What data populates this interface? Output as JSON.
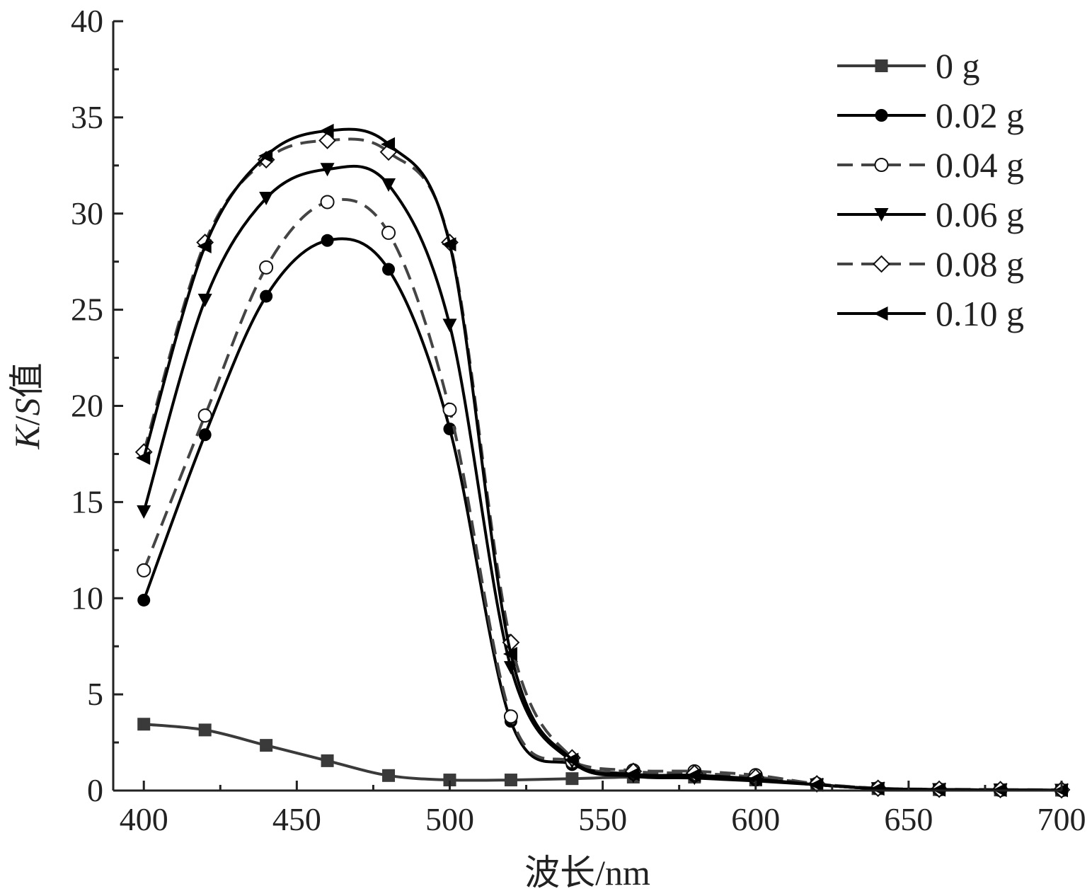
{
  "chart_data": {
    "type": "line",
    "xlabel": "波长/nm",
    "ylabel_parts": [
      {
        "text": "K",
        "italic": true
      },
      {
        "text": "/",
        "italic": false
      },
      {
        "text": "S",
        "italic": true
      },
      {
        "text": "值",
        "italic": false
      }
    ],
    "xlim": [
      390,
      700
    ],
    "ylim": [
      0,
      40
    ],
    "x_ticks": [
      400,
      450,
      500,
      550,
      600,
      650,
      700
    ],
    "y_ticks": [
      0,
      5,
      10,
      15,
      20,
      25,
      30,
      35,
      40
    ],
    "grid": false,
    "legend_position": "top-right",
    "x": [
      400,
      420,
      440,
      460,
      480,
      500,
      520,
      540,
      560,
      580,
      600,
      620,
      640,
      660,
      680,
      700
    ],
    "series": [
      {
        "name": "0 g",
        "marker": "square",
        "dash": false,
        "color": "#3a3a3a",
        "values": [
          3.45,
          3.15,
          2.35,
          1.55,
          0.78,
          0.55,
          0.55,
          0.62,
          0.7,
          0.7,
          0.55,
          0.3,
          0.1,
          0.05,
          0.03,
          0.02
        ]
      },
      {
        "name": "0.02 g",
        "marker": "circle",
        "dash": false,
        "color": "#000000",
        "values": [
          9.9,
          18.5,
          25.7,
          28.6,
          27.1,
          18.8,
          3.6,
          1.35,
          0.85,
          0.75,
          0.55,
          0.3,
          0.1,
          0.05,
          0.03,
          0.02
        ]
      },
      {
        "name": "0.04 g",
        "marker": "circle-open",
        "dash": true,
        "color": "#444444",
        "values": [
          11.45,
          19.5,
          27.2,
          30.6,
          29.0,
          19.8,
          3.85,
          1.5,
          1.05,
          1.0,
          0.8,
          0.35,
          0.12,
          0.06,
          0.03,
          0.02
        ]
      },
      {
        "name": "0.06 g",
        "marker": "triangle-down",
        "dash": false,
        "color": "#000000",
        "values": [
          14.5,
          25.5,
          30.8,
          32.3,
          31.5,
          24.2,
          6.4,
          1.5,
          0.75,
          0.65,
          0.5,
          0.3,
          0.1,
          0.05,
          0.03,
          0.02
        ]
      },
      {
        "name": "0.08 g",
        "marker": "diamond-open",
        "dash": true,
        "color": "#444444",
        "values": [
          17.6,
          28.5,
          32.8,
          33.8,
          33.2,
          28.5,
          7.7,
          1.7,
          1.0,
          0.9,
          0.7,
          0.35,
          0.12,
          0.07,
          0.05,
          0.04
        ]
      },
      {
        "name": "0.10 g",
        "marker": "triangle-left",
        "dash": false,
        "color": "#000000",
        "values": [
          17.3,
          28.3,
          33.0,
          34.3,
          33.6,
          28.4,
          7.1,
          1.6,
          0.85,
          0.8,
          0.6,
          0.3,
          0.1,
          0.05,
          0.03,
          0.02
        ]
      }
    ]
  }
}
